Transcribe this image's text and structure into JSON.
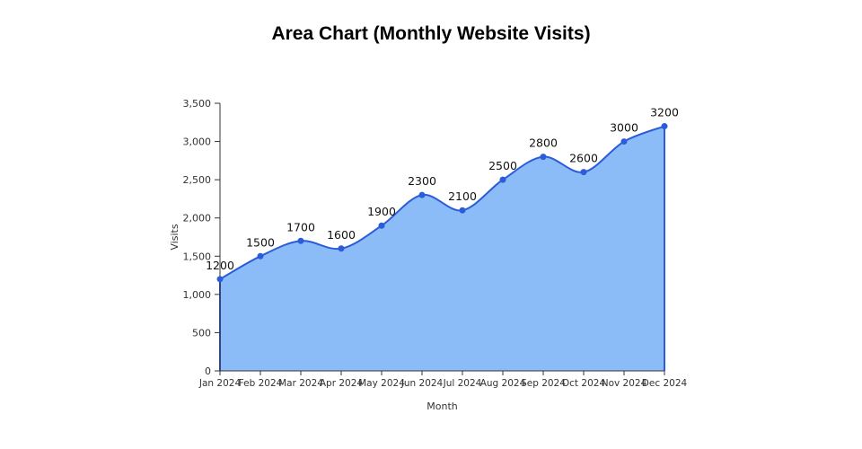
{
  "page": {
    "title": "Area Chart (Monthly Website Visits)"
  },
  "chart_data": {
    "type": "area",
    "title": "Area Chart (Monthly Website Visits)",
    "categories": [
      "Jan 2024",
      "Feb 2024",
      "Mar 2024",
      "Apr 2024",
      "May 2024",
      "Jun 2024",
      "Jul 2024",
      "Aug 2024",
      "Sep 2024",
      "Oct 2024",
      "Nov 2024",
      "Dec 2024"
    ],
    "values": [
      1200,
      1500,
      1700,
      1600,
      1900,
      2300,
      2100,
      2500,
      2800,
      2600,
      3000,
      3200
    ],
    "data_labels": [
      "1200",
      "1500",
      "1700",
      "1600",
      "1900",
      "2300",
      "2100",
      "2500",
      "2800",
      "2600",
      "3000",
      "3200"
    ],
    "xlabel": "Month",
    "ylabel": "Visits",
    "ylim": [
      0,
      3500
    ],
    "ytick_step": 500,
    "ytick_labels": [
      "0",
      "500",
      "1,000",
      "1,500",
      "2,000",
      "2,500",
      "3,000",
      "3,500"
    ],
    "grid": false,
    "legend": "none",
    "smooth": true,
    "colors": {
      "fill": "#8CBCF7",
      "line": "#2B5CD9",
      "point": "#2B5CD9",
      "axis": "#333333",
      "tick_text": "#333333",
      "data_label": "#111111"
    }
  }
}
